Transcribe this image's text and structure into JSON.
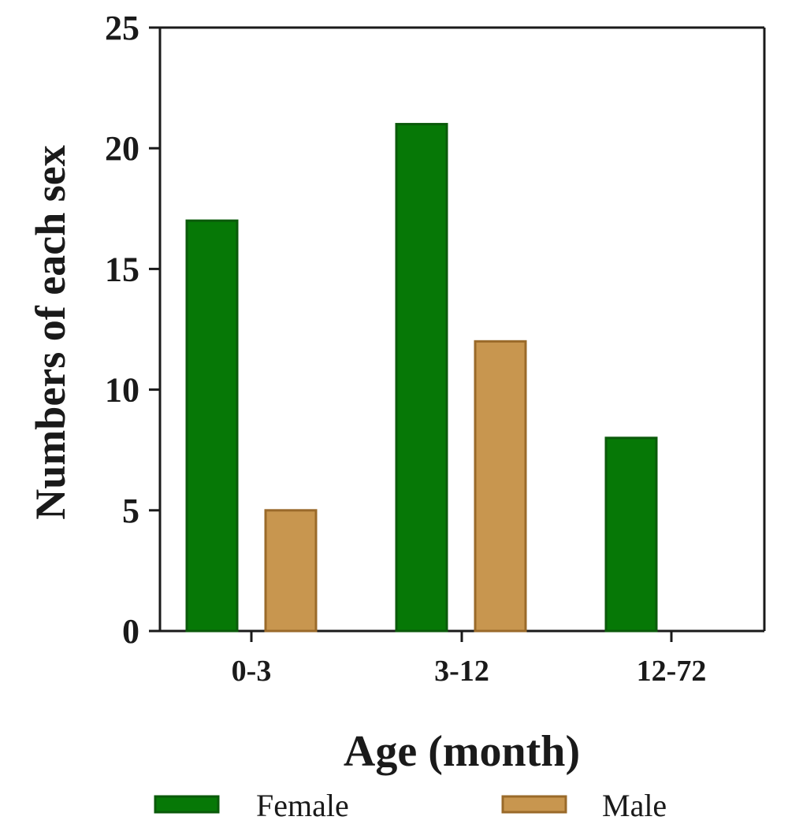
{
  "chart_data": {
    "type": "bar",
    "title": "",
    "xlabel": "Age (month)",
    "ylabel": "Numbers of each sex",
    "categories": [
      "0-3",
      "3-12",
      "12-72"
    ],
    "series": [
      {
        "name": "Female",
        "values": [
          17,
          21,
          8
        ],
        "color": "#067806",
        "stroke": "#0a5a0a"
      },
      {
        "name": "Male",
        "values": [
          5,
          12,
          0
        ],
        "color": "#c8964f",
        "stroke": "#9a6a2a"
      }
    ],
    "ylim": [
      0,
      25
    ],
    "yticks": [
      0,
      5,
      10,
      15,
      20,
      25
    ],
    "grid": false,
    "legend_position": "bottom"
  }
}
